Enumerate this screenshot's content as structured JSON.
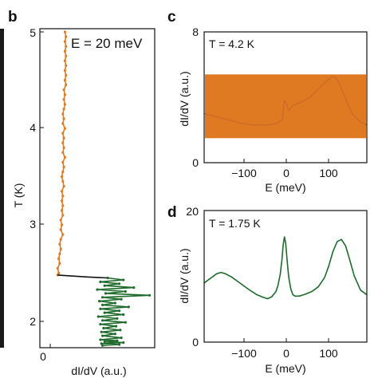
{
  "colors": {
    "orange": "#e07a22",
    "green": "#1e6b2c",
    "black": "#111111",
    "left_strip": "#1a1a1a"
  },
  "panel_b": {
    "letter": "b",
    "annotation": "E = 20 meV",
    "xlabel": "dI/dV (a.u.)",
    "ylabel": "T (K)",
    "x_ticks": [
      "0"
    ],
    "y_ticks": [
      "2",
      "3",
      "4",
      "5"
    ]
  },
  "panel_c": {
    "letter": "c",
    "annotation": "T = 4.2 K",
    "xlabel": "E (meV)",
    "ylabel": "dI/dV (a.u.)",
    "x_ticks": [
      "−100",
      "0",
      "100"
    ],
    "y_ticks": [
      "0",
      "8"
    ]
  },
  "panel_d": {
    "letter": "d",
    "annotation": "T = 1.75 K",
    "xlabel": "E (meV)",
    "ylabel": "dI/dV (a.u.)",
    "x_ticks": [
      "−100",
      "0",
      "100"
    ],
    "y_ticks": [
      "0",
      "20"
    ]
  },
  "chart_data": [
    {
      "panel": "b",
      "type": "line",
      "xlabel": "dI/dV (a.u.)",
      "ylabel": "T (K)",
      "xlim": [
        -0.1,
        1.0
      ],
      "ylim": [
        1.75,
        5.0
      ],
      "series": [
        {
          "color": "#e07a22",
          "x": [
            0.14,
            0.15,
            0.14,
            0.15,
            0.14,
            0.15,
            0.14,
            0.15,
            0.14,
            0.15,
            0.14,
            0.15,
            0.13,
            0.14,
            0.13,
            0.14,
            0.13,
            0.12,
            0.13,
            0.12,
            0.14,
            0.12,
            0.13,
            0.12,
            0.13,
            0.12,
            0.14,
            0.12,
            0.13,
            0.12,
            0.11,
            0.12,
            0.13,
            0.11,
            0.12,
            0.11,
            0.12,
            0.11,
            0.12,
            0.1,
            0.11,
            0.1,
            0.12,
            0.1,
            0.09,
            0.1,
            0.09,
            0.08,
            0.09,
            0.07,
            0.08,
            0.07
          ],
          "y": [
            5.0,
            4.95,
            4.9,
            4.85,
            4.8,
            4.75,
            4.7,
            4.65,
            4.6,
            4.55,
            4.5,
            4.45,
            4.4,
            4.35,
            4.3,
            4.25,
            4.2,
            4.15,
            4.1,
            4.05,
            4.0,
            3.95,
            3.9,
            3.85,
            3.8,
            3.75,
            3.7,
            3.65,
            3.6,
            3.55,
            3.5,
            3.45,
            3.4,
            3.35,
            3.3,
            3.25,
            3.2,
            3.15,
            3.1,
            3.05,
            3.0,
            2.95,
            2.9,
            2.85,
            2.8,
            2.75,
            2.7,
            2.65,
            2.6,
            2.55,
            2.5,
            2.48
          ]
        },
        {
          "color": "#111111",
          "x": [
            0.07,
            0.35,
            0.55
          ],
          "y": [
            2.48,
            2.46,
            2.45
          ]
        },
        {
          "color": "#1e6b2c",
          "x": [
            0.55,
            0.7,
            0.48,
            0.66,
            0.52,
            0.8,
            0.45,
            0.72,
            0.53,
            0.95,
            0.5,
            0.68,
            0.47,
            0.62,
            0.5,
            0.75,
            0.48,
            0.66,
            0.52,
            0.7,
            0.46,
            0.64,
            0.5,
            0.72,
            0.48,
            0.63,
            0.51,
            0.67,
            0.49,
            0.62,
            0.5,
            0.68,
            0.48,
            0.64,
            0.52,
            0.7,
            0.49,
            0.66,
            0.5
          ],
          "y": [
            2.45,
            2.43,
            2.41,
            2.39,
            2.37,
            2.35,
            2.33,
            2.31,
            2.29,
            2.27,
            2.25,
            2.23,
            2.21,
            2.19,
            2.17,
            2.15,
            2.13,
            2.11,
            2.09,
            2.07,
            2.05,
            2.03,
            2.01,
            1.99,
            1.97,
            1.95,
            1.93,
            1.91,
            1.89,
            1.87,
            1.85,
            1.83,
            1.81,
            1.8,
            1.79,
            1.78,
            1.77,
            1.76,
            1.75
          ]
        }
      ]
    },
    {
      "panel": "c",
      "type": "line",
      "xlabel": "E (meV)",
      "ylabel": "dI/dV (a.u.)",
      "xlim": [
        -190,
        195
      ],
      "ylim": [
        0,
        8
      ],
      "band": {
        "color": "#e07a22",
        "ymin": 1.5,
        "ymax": 5.4
      },
      "series": [
        {
          "color": "#c7692a",
          "x": [
            -190,
            -160,
            -130,
            -100,
            -70,
            -40,
            -20,
            -5,
            0,
            5,
            10,
            20,
            40,
            60,
            80,
            100,
            115,
            125,
            140,
            160,
            180,
            195
          ],
          "y": [
            3.0,
            2.8,
            2.6,
            2.4,
            2.3,
            2.3,
            2.4,
            2.6,
            3.8,
            3.6,
            3.2,
            3.5,
            3.7,
            4.0,
            4.5,
            5.0,
            5.3,
            5.1,
            4.2,
            3.0,
            2.5,
            2.3
          ]
        }
      ]
    },
    {
      "panel": "d",
      "type": "line",
      "xlabel": "E (meV)",
      "ylabel": "dI/dV (a.u.)",
      "xlim": [
        -190,
        195
      ],
      "ylim": [
        0,
        20
      ],
      "series": [
        {
          "color": "#1e6b2c",
          "x": [
            -190,
            -175,
            -160,
            -150,
            -140,
            -125,
            -110,
            -95,
            -80,
            -65,
            -50,
            -40,
            -30,
            -20,
            -15,
            -10,
            -6,
            -3,
            0,
            3,
            6,
            10,
            15,
            20,
            25,
            35,
            50,
            65,
            80,
            95,
            105,
            115,
            125,
            135,
            145,
            155,
            165,
            180,
            195
          ],
          "y": [
            9.0,
            9.7,
            10.4,
            10.6,
            10.4,
            9.9,
            9.2,
            8.5,
            7.8,
            7.2,
            6.8,
            6.6,
            6.9,
            7.7,
            8.7,
            10.3,
            12.5,
            14.8,
            16.0,
            15.0,
            12.6,
            9.9,
            8.1,
            7.2,
            7.0,
            7.0,
            7.3,
            7.7,
            8.4,
            9.8,
            11.6,
            13.8,
            15.3,
            15.6,
            14.6,
            12.4,
            10.1,
            7.9,
            7.2
          ]
        }
      ]
    }
  ]
}
